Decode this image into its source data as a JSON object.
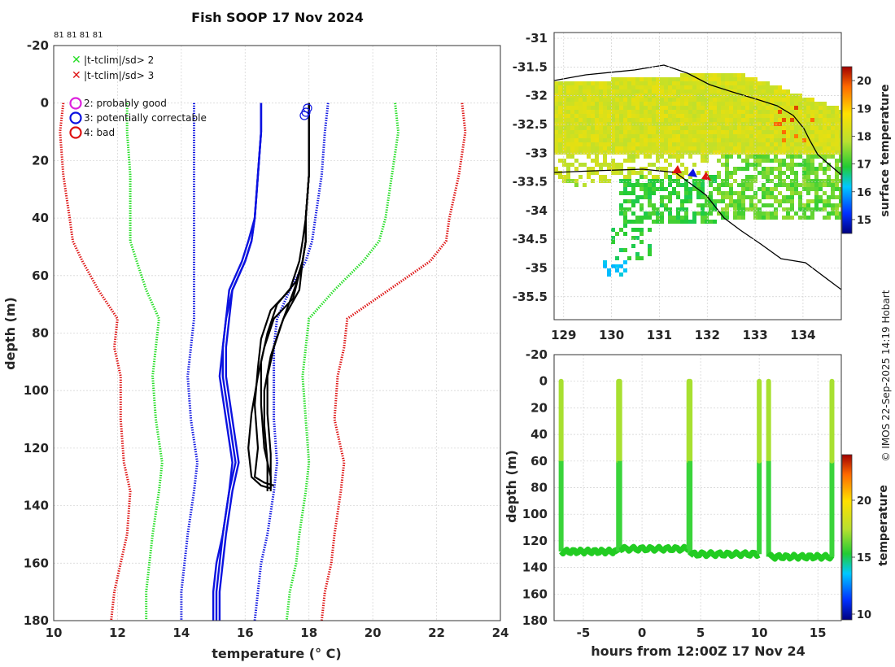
{
  "title": "Fish SOOP 17 Nov 2024",
  "top_counts": "81 81 81 81",
  "legend_cross": [
    "|t-tclim|/sd> 2",
    "|t-tclim|/sd> 3"
  ],
  "legend_circle": [
    "2: probably good",
    "3: potentially correctable",
    "4: bad"
  ],
  "colors": {
    "green": "#22dd22",
    "red": "#dd1111",
    "blue": "#0b12e0",
    "magenta": "#dd22dd",
    "black": "#000000"
  },
  "copyright": "© IMOS 22-Sep-2025 14:19 Hobart",
  "chart_data": [
    {
      "type": "line",
      "name": "profile-plot",
      "xlabel": "temperature (° C)",
      "ylabel": "depth (m)",
      "xlim": [
        10,
        24
      ],
      "ylim": [
        -20,
        180
      ],
      "xticks": [
        "10",
        "12",
        "14",
        "16",
        "18",
        "20",
        "22",
        "24"
      ],
      "yticks": [
        "-20",
        "0",
        "20",
        "40",
        "60",
        "80",
        "100",
        "120",
        "140",
        "160",
        "180"
      ],
      "series": [
        {
          "name": "red-left",
          "style": "dotted",
          "color": "red",
          "t": [
            10.3,
            10.2,
            10.3,
            10.5,
            10.6,
            10.9,
            11.4,
            12.0,
            11.9,
            12.1,
            12.1,
            12.2,
            12.4,
            12.3,
            12.1,
            11.9,
            11.8
          ],
          "d": [
            0,
            10,
            25,
            40,
            48,
            55,
            65,
            75,
            85,
            95,
            110,
            125,
            135,
            150,
            160,
            170,
            180
          ]
        },
        {
          "name": "red-right",
          "style": "dotted",
          "color": "red",
          "t": [
            22.8,
            22.9,
            22.7,
            22.4,
            22.3,
            21.8,
            20.5,
            19.2,
            19.1,
            18.9,
            18.8,
            19.1,
            19.0,
            18.8,
            18.7,
            18.5,
            18.4
          ],
          "d": [
            0,
            10,
            25,
            40,
            48,
            55,
            65,
            75,
            85,
            95,
            110,
            125,
            135,
            150,
            160,
            170,
            180
          ]
        },
        {
          "name": "green-left",
          "style": "dotted",
          "color": "green",
          "t": [
            12.3,
            12.3,
            12.4,
            12.4,
            12.4,
            12.6,
            12.9,
            13.3,
            13.2,
            13.1,
            13.2,
            13.4,
            13.3,
            13.1,
            13.0,
            12.9,
            12.9
          ],
          "d": [
            0,
            10,
            25,
            40,
            48,
            55,
            65,
            75,
            85,
            95,
            110,
            125,
            135,
            150,
            160,
            170,
            180
          ]
        },
        {
          "name": "green-right",
          "style": "dotted",
          "color": "green",
          "t": [
            20.7,
            20.8,
            20.6,
            20.4,
            20.2,
            19.7,
            18.8,
            18.0,
            17.9,
            17.8,
            17.9,
            18.0,
            17.9,
            17.7,
            17.6,
            17.4,
            17.3
          ],
          "d": [
            0,
            10,
            25,
            40,
            48,
            55,
            65,
            75,
            85,
            95,
            110,
            125,
            135,
            150,
            160,
            170,
            180
          ]
        },
        {
          "name": "blue-left",
          "style": "dotted",
          "color": "blue",
          "t": [
            14.4,
            14.4,
            14.4,
            14.4,
            14.4,
            14.4,
            14.4,
            14.4,
            14.3,
            14.2,
            14.3,
            14.5,
            14.4,
            14.2,
            14.1,
            14.0,
            14.0
          ],
          "d": [
            0,
            10,
            25,
            40,
            48,
            55,
            65,
            75,
            85,
            95,
            110,
            125,
            135,
            150,
            160,
            170,
            180
          ]
        },
        {
          "name": "blue-right",
          "style": "dotted",
          "color": "blue",
          "t": [
            18.6,
            18.5,
            18.4,
            18.2,
            18.1,
            17.9,
            17.4,
            17.0,
            16.9,
            16.9,
            16.9,
            17.0,
            16.9,
            16.7,
            16.5,
            16.4,
            16.3
          ],
          "d": [
            0,
            10,
            25,
            40,
            48,
            55,
            65,
            75,
            85,
            95,
            110,
            125,
            135,
            150,
            160,
            170,
            180
          ]
        },
        {
          "name": "blue-solid-1",
          "style": "solid",
          "color": "blue",
          "t": [
            16.5,
            16.5,
            16.4,
            16.3,
            16.2,
            16.0,
            15.6,
            15.5,
            15.4,
            15.4,
            15.6,
            15.8,
            15.6,
            15.4,
            15.3,
            15.2,
            15.2
          ],
          "d": [
            0,
            10,
            25,
            40,
            48,
            55,
            65,
            75,
            85,
            95,
            110,
            125,
            135,
            150,
            160,
            170,
            180
          ]
        },
        {
          "name": "blue-solid-2",
          "style": "solid",
          "color": "blue",
          "t": [
            16.5,
            16.5,
            16.4,
            16.3,
            16.2,
            16.0,
            15.6,
            15.4,
            15.3,
            15.3,
            15.5,
            15.7,
            15.5,
            15.3,
            15.2,
            15.1,
            15.1
          ],
          "d": [
            0,
            10,
            25,
            40,
            48,
            55,
            65,
            75,
            85,
            95,
            110,
            125,
            135,
            150,
            160,
            170,
            180
          ]
        },
        {
          "name": "blue-solid-3",
          "style": "solid",
          "color": "blue",
          "t": [
            16.5,
            16.5,
            16.4,
            16.3,
            16.1,
            15.9,
            15.5,
            15.4,
            15.3,
            15.2,
            15.4,
            15.6,
            15.5,
            15.3,
            15.1,
            15.0,
            15.0
          ],
          "d": [
            0,
            10,
            25,
            40,
            48,
            55,
            65,
            75,
            85,
            95,
            110,
            125,
            135,
            150,
            160,
            170,
            180
          ]
        },
        {
          "name": "black-1",
          "style": "solid",
          "color": "black",
          "t": [
            18.0,
            18.0,
            18.0,
            17.9,
            17.9,
            17.8,
            17.6,
            17.0,
            16.7,
            16.5,
            16.5,
            16.6,
            16.8,
            16.8
          ],
          "d": [
            0,
            10,
            25,
            40,
            48,
            55,
            62,
            70,
            80,
            90,
            105,
            120,
            130,
            135
          ]
        },
        {
          "name": "black-2",
          "style": "solid",
          "color": "black",
          "t": [
            18.0,
            18.0,
            18.0,
            17.9,
            17.8,
            17.7,
            17.4,
            16.8,
            16.5,
            16.4,
            16.3,
            16.4,
            16.3,
            16.6,
            16.9
          ],
          "d": [
            0,
            10,
            25,
            40,
            48,
            55,
            65,
            72,
            82,
            92,
            105,
            120,
            130,
            132,
            133
          ]
        },
        {
          "name": "black-3",
          "style": "solid",
          "color": "black",
          "t": [
            18.0,
            18.0,
            18.0,
            17.9,
            17.9,
            17.8,
            17.7,
            17.2,
            16.9,
            16.7,
            16.7,
            16.8,
            16.8
          ],
          "d": [
            0,
            10,
            25,
            40,
            48,
            55,
            65,
            75,
            85,
            95,
            108,
            122,
            134
          ]
        },
        {
          "name": "black-4",
          "style": "solid",
          "color": "black",
          "t": [
            18.0,
            18.0,
            18.0,
            17.9,
            17.9,
            17.8,
            17.5,
            16.9,
            16.6,
            16.4,
            16.2,
            16.1,
            16.2,
            16.5,
            16.8
          ],
          "d": [
            0,
            10,
            25,
            40,
            48,
            55,
            68,
            75,
            85,
            95,
            108,
            120,
            130,
            133,
            134
          ]
        },
        {
          "name": "black-5",
          "style": "solid",
          "color": "black",
          "t": [
            18.0,
            18.0,
            18.0,
            17.9,
            17.9,
            17.8,
            17.6,
            17.1,
            16.8,
            16.6,
            16.6,
            16.7,
            16.7
          ],
          "d": [
            0,
            10,
            25,
            40,
            48,
            55,
            63,
            78,
            88,
            100,
            112,
            125,
            135
          ]
        }
      ]
    },
    {
      "type": "heatmap",
      "name": "surface-temperature-map",
      "xlim": [
        128.8,
        134.8
      ],
      "ylim": [
        -35.9,
        -30.9
      ],
      "xticks": [
        "129",
        "130",
        "131",
        "132",
        "133",
        "134"
      ],
      "yticks": [
        "-31",
        "-31.5",
        "-32",
        "-32.5",
        "-33",
        "-33.5",
        "-34",
        "-34.5",
        "-35",
        "-35.5"
      ],
      "colorbar": {
        "label": "surface temperature",
        "range": [
          14.5,
          20.5
        ],
        "ticks": [
          "15",
          "16",
          "17",
          "18",
          "19",
          "20"
        ]
      },
      "track": [
        [
          131.3,
          -33.3
        ],
        [
          131.5,
          -33.35
        ],
        [
          131.7,
          -33.38
        ],
        [
          131.9,
          -33.45
        ],
        [
          132.0,
          -33.5
        ]
      ]
    },
    {
      "type": "scatter",
      "name": "depth-time-plot",
      "xlabel": "hours from 12:00Z 17 Nov 24",
      "ylabel": "depth (m)",
      "xlim": [
        -7.5,
        17
      ],
      "ylim": [
        -20,
        180
      ],
      "xticks": [
        "-5",
        "0",
        "5",
        "10",
        "15"
      ],
      "yticks": [
        "-20",
        "0",
        "20",
        "40",
        "60",
        "80",
        "100",
        "120",
        "140",
        "160",
        "180"
      ],
      "colorbar": {
        "label": "temperature",
        "range": [
          9.5,
          24
        ],
        "ticks": [
          "10",
          "15",
          "20"
        ]
      },
      "casts": [
        {
          "t": [
            -6.9,
            -2.0
          ],
          "bottom": 128
        },
        {
          "t": [
            -1.9,
            4.0
          ],
          "bottom": 126
        },
        {
          "t": [
            4.1,
            10.0
          ],
          "bottom": 130
        },
        {
          "t": [
            10.8,
            16.2
          ],
          "bottom": 132
        }
      ]
    }
  ]
}
